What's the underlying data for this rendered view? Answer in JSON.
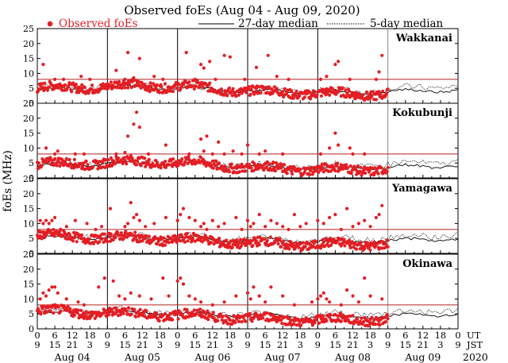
{
  "chart_data": {
    "type": "scatter",
    "title": "Observed foEs (Aug 04 - Aug 09, 2020)",
    "ylabel": "foEs (MHz)",
    "ylim": [
      0,
      25
    ],
    "xlim_hours": [
      0,
      144
    ],
    "y_ticks": [
      0,
      5,
      10,
      15,
      20,
      25
    ],
    "threshold_mhz": 8,
    "legend": {
      "observed": "Observed foEs",
      "median27": "27-day median",
      "median5": "5-day median"
    },
    "x_axis": {
      "ut_label": "UT",
      "jst_label": "JST",
      "ut_ticks": [
        "0",
        "6",
        "12",
        "18",
        "0",
        "6",
        "12",
        "18",
        "0",
        "6",
        "12",
        "18",
        "0",
        "6",
        "12",
        "18",
        "0",
        "6",
        "12",
        "18",
        "0",
        "6",
        "12",
        "18",
        "0"
      ],
      "jst_ticks": [
        "9",
        "15",
        "21",
        "3",
        "9",
        "15",
        "21",
        "3",
        "9",
        "15",
        "21",
        "3",
        "9",
        "15",
        "21",
        "3",
        "9",
        "15",
        "21",
        "3",
        "9",
        "15",
        "21",
        "3",
        "9"
      ],
      "dates": [
        "Aug 04",
        "Aug 05",
        "Aug 06",
        "Aug 07",
        "Aug 08",
        "Aug 09"
      ],
      "year": "2020"
    },
    "stations": [
      {
        "name": "Wakkanai",
        "median27": [
          4.5,
          5.0,
          5.5,
          5.0,
          4.2,
          3.8,
          3.6,
          4.0,
          4.5
        ],
        "median5": [
          5.0,
          5.5,
          6.0,
          5.2,
          4.5,
          4.0,
          4.2,
          5.0,
          6.0
        ],
        "base": [
          5.0,
          5.5,
          6.0,
          5.5,
          4.0,
          3.5,
          3.0,
          3.5,
          4.5
        ],
        "spikes": [
          [
            2,
            13
          ],
          [
            6,
            8
          ],
          [
            9,
            8
          ],
          [
            15,
            9
          ],
          [
            18,
            8
          ],
          [
            27,
            11
          ],
          [
            30,
            8
          ],
          [
            31,
            17
          ],
          [
            33,
            8.5
          ],
          [
            35,
            15
          ],
          [
            40,
            9
          ],
          [
            43,
            8
          ],
          [
            51,
            17
          ],
          [
            54,
            8
          ],
          [
            56,
            13
          ],
          [
            57,
            11.8
          ],
          [
            59,
            14
          ],
          [
            61,
            8
          ],
          [
            64,
            16
          ],
          [
            66,
            15.5
          ],
          [
            71,
            8
          ],
          [
            75,
            12
          ],
          [
            79,
            16
          ],
          [
            82,
            9
          ],
          [
            86,
            8
          ],
          [
            97,
            8
          ],
          [
            99,
            9
          ],
          [
            102,
            13
          ],
          [
            103,
            14
          ],
          [
            107,
            8
          ],
          [
            116,
            8
          ],
          [
            117,
            10.5
          ],
          [
            118,
            16
          ]
        ]
      },
      {
        "name": "Kokubunji",
        "median27": [
          4.2,
          4.5,
          5.0,
          4.5,
          3.8,
          3.5,
          3.3,
          3.8,
          4.2
        ],
        "median5": [
          4.5,
          5.0,
          5.5,
          5.0,
          4.2,
          3.8,
          4.0,
          4.8,
          5.5
        ],
        "base": [
          4.5,
          5.0,
          5.5,
          5.0,
          3.5,
          3.0,
          2.8,
          3.2,
          4.0
        ],
        "spikes": [
          [
            3,
            10
          ],
          [
            6,
            8
          ],
          [
            7,
            9
          ],
          [
            13,
            8
          ],
          [
            16,
            8
          ],
          [
            27,
            8
          ],
          [
            30,
            8.5
          ],
          [
            31,
            14
          ],
          [
            33,
            18
          ],
          [
            34,
            22
          ],
          [
            35,
            17
          ],
          [
            38,
            8
          ],
          [
            44,
            11
          ],
          [
            52,
            8
          ],
          [
            56,
            13
          ],
          [
            57,
            9
          ],
          [
            58,
            14
          ],
          [
            60,
            8
          ],
          [
            62,
            12
          ],
          [
            64,
            8
          ],
          [
            67,
            9
          ],
          [
            70,
            8
          ],
          [
            72,
            11
          ],
          [
            76,
            8
          ],
          [
            78,
            9
          ],
          [
            84,
            8
          ],
          [
            97,
            8
          ],
          [
            100,
            10
          ],
          [
            102,
            15
          ],
          [
            103,
            11
          ],
          [
            107,
            10
          ],
          [
            108,
            8
          ],
          [
            112,
            8
          ]
        ]
      },
      {
        "name": "Yamagawa",
        "median27": [
          5.0,
          5.5,
          5.5,
          5.0,
          4.5,
          4.2,
          4.0,
          4.4,
          5.0
        ],
        "median5": [
          5.5,
          6.0,
          6.0,
          5.5,
          5.0,
          4.5,
          5.0,
          5.5,
          6.5
        ],
        "base": [
          6.0,
          5.5,
          5.0,
          4.5,
          3.5,
          3.0,
          3.0,
          3.5,
          5.0
        ],
        "spikes": [
          [
            1,
            11
          ],
          [
            2,
            10
          ],
          [
            3,
            11
          ],
          [
            4,
            10
          ],
          [
            5,
            11
          ],
          [
            6,
            12
          ],
          [
            8,
            8
          ],
          [
            10,
            9
          ],
          [
            13,
            11
          ],
          [
            17,
            10
          ],
          [
            20,
            8
          ],
          [
            22,
            9
          ],
          [
            25,
            15
          ],
          [
            30,
            9
          ],
          [
            31,
            10
          ],
          [
            32,
            17
          ],
          [
            33,
            12
          ],
          [
            34,
            13
          ],
          [
            35,
            11
          ],
          [
            37,
            9
          ],
          [
            40,
            10
          ],
          [
            44,
            12
          ],
          [
            48,
            11
          ],
          [
            49,
            13
          ],
          [
            50,
            15
          ],
          [
            52,
            12
          ],
          [
            54,
            11
          ],
          [
            56,
            9
          ],
          [
            57,
            10
          ],
          [
            58,
            8
          ],
          [
            60,
            11
          ],
          [
            62,
            9
          ],
          [
            64,
            10
          ],
          [
            68,
            12
          ],
          [
            70,
            8
          ],
          [
            72,
            11
          ],
          [
            73,
            9
          ],
          [
            74,
            10
          ],
          [
            76,
            13
          ],
          [
            78,
            9
          ],
          [
            80,
            11
          ],
          [
            82,
            10
          ],
          [
            84,
            9
          ],
          [
            86,
            8
          ],
          [
            88,
            13
          ],
          [
            90,
            9
          ],
          [
            92,
            10
          ],
          [
            96,
            11
          ],
          [
            98,
            10
          ],
          [
            100,
            12
          ],
          [
            102,
            13
          ],
          [
            104,
            8
          ],
          [
            106,
            15
          ],
          [
            108,
            9
          ],
          [
            110,
            10
          ],
          [
            112,
            11
          ],
          [
            114,
            9
          ],
          [
            116,
            12
          ],
          [
            117,
            13
          ],
          [
            118,
            16
          ]
        ]
      },
      {
        "name": "Okinawa",
        "median27": [
          5.0,
          5.5,
          5.5,
          5.0,
          4.5,
          4.2,
          4.0,
          4.4,
          5.0
        ],
        "median5": [
          5.5,
          6.0,
          6.0,
          5.5,
          5.0,
          4.5,
          5.0,
          5.5,
          6.5
        ],
        "base": [
          6.0,
          5.5,
          5.0,
          4.5,
          3.5,
          3.0,
          3.0,
          3.5,
          5.0
        ],
        "spikes": [
          [
            1,
            10
          ],
          [
            2,
            12
          ],
          [
            3,
            11
          ],
          [
            4,
            13
          ],
          [
            5,
            14
          ],
          [
            6,
            14
          ],
          [
            7,
            12
          ],
          [
            10,
            10
          ],
          [
            14,
            9
          ],
          [
            16,
            8
          ],
          [
            21,
            14
          ],
          [
            23,
            17
          ],
          [
            26,
            16
          ],
          [
            28,
            11
          ],
          [
            30,
            10
          ],
          [
            32,
            12
          ],
          [
            35,
            11
          ],
          [
            39,
            10
          ],
          [
            43,
            17
          ],
          [
            45,
            11
          ],
          [
            48,
            16
          ],
          [
            49,
            17
          ],
          [
            50,
            15
          ],
          [
            52,
            11
          ],
          [
            54,
            10
          ],
          [
            56,
            9
          ],
          [
            60,
            8
          ],
          [
            64,
            9
          ],
          [
            68,
            11
          ],
          [
            72,
            12
          ],
          [
            73,
            10
          ],
          [
            74,
            14
          ],
          [
            76,
            11
          ],
          [
            78,
            9
          ],
          [
            80,
            14
          ],
          [
            84,
            11
          ],
          [
            88,
            8
          ],
          [
            94,
            9
          ],
          [
            96,
            10
          ],
          [
            97,
            11
          ],
          [
            98,
            12
          ],
          [
            99,
            10
          ],
          [
            100,
            9
          ],
          [
            104,
            8
          ],
          [
            106,
            13
          ],
          [
            108,
            11
          ],
          [
            110,
            9
          ],
          [
            112,
            17
          ],
          [
            114,
            11
          ],
          [
            118,
            10
          ]
        ]
      }
    ]
  }
}
